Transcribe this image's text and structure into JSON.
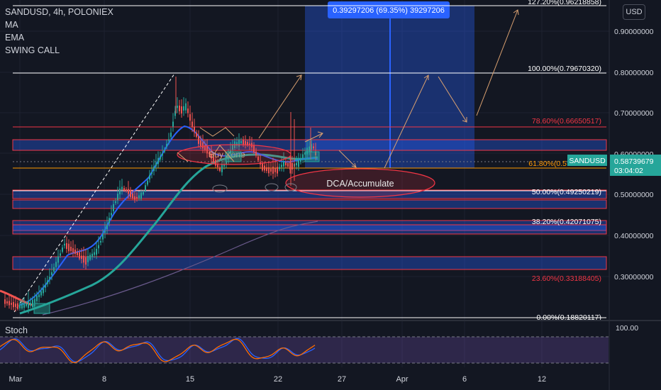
{
  "header": {
    "symbol_line": "SANDUSD, 4h, POLONIEX",
    "indicators": [
      "MA",
      "EMA",
      "SWING CALL"
    ]
  },
  "currency_button": "USD",
  "price_axis": {
    "ticks": [
      "0.90000000",
      "0.80000000",
      "0.70000000",
      "0.60000000",
      "0.50000000",
      "0.40000000",
      "0.30000000"
    ],
    "current_symbol": "SANDUSD",
    "current_price": "0.58739679",
    "countdown": "03:04:02"
  },
  "time_axis": {
    "ticks": [
      "Mar",
      "8",
      "15",
      "22",
      "27",
      "Apr",
      "6",
      "12"
    ]
  },
  "fib_levels": [
    {
      "label": "127.20%(0.96218858)",
      "color": "#ffffff"
    },
    {
      "label": "100.00%(0.79670320)",
      "color": "#ffffff"
    },
    {
      "label": "78.60%(0.66650517)",
      "color": "#f23645"
    },
    {
      "label": "61.80%(0.5",
      "color": "#ff9800"
    },
    {
      "label": "50.00%(0.49250219)",
      "color": "#ffffff"
    },
    {
      "label": "38.20%(0.42071075)",
      "color": "#ffffff"
    },
    {
      "label": "23.60%(0.33188405)",
      "color": "#f23645"
    },
    {
      "label": "0.00%(0.18820117)",
      "color": "#ffffff"
    }
  ],
  "measure_box": {
    "label": "0.39297206 (69.35%) 39297206"
  },
  "annotations": {
    "buy_zone": "Buy Zone",
    "dca": "DCA/Accumulate"
  },
  "stoch": {
    "label": "Stoch",
    "level": "100.00"
  },
  "colors": {
    "background": "#131722",
    "blue_zone": "#2962ff",
    "ma_blue": "#2962ff",
    "ema_teal": "#26a69a",
    "bull": "#26a69a",
    "bear": "#ef5350",
    "stoch_bg": "#7e57c2"
  }
}
